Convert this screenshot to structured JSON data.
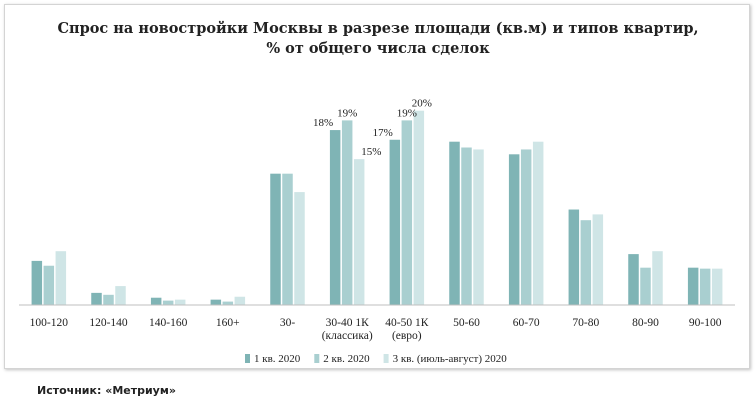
{
  "chart_data": {
    "type": "bar",
    "title": [
      "Спрос на новостройки  Москвы в разрезе площади (кв.м) и типов квартир,",
      "% от общего числа сделок"
    ],
    "categories": [
      [
        "100-120"
      ],
      [
        "120-140"
      ],
      [
        "140-160"
      ],
      [
        "160+"
      ],
      [
        "30-"
      ],
      [
        "30-40  1К",
        "(классика)"
      ],
      [
        "40-50  1К",
        "(евро)"
      ],
      [
        "50-60"
      ],
      [
        "60-70"
      ],
      [
        "70-80"
      ],
      [
        "80-90"
      ],
      [
        "90-100"
      ]
    ],
    "series": [
      {
        "name": "1 кв. 2020",
        "color": "#7fb4b5",
        "values": [
          4.5,
          1.2,
          0.7,
          0.5,
          13.5,
          18,
          17,
          16.8,
          15.5,
          9.8,
          5.2,
          3.8
        ]
      },
      {
        "name": "2 кв. 2020",
        "color": "#a9cfd0",
        "values": [
          4.0,
          1.0,
          0.4,
          0.3,
          13.5,
          19,
          19,
          16.2,
          16.0,
          8.7,
          3.8,
          3.7
        ]
      },
      {
        "name": "3 кв. (июль-август) 2020",
        "color": "#cfe5e6",
        "values": [
          5.5,
          1.9,
          0.5,
          0.8,
          11.6,
          15,
          20,
          16.0,
          16.8,
          9.3,
          5.5,
          3.7
        ]
      }
    ],
    "data_labels": [
      {
        "category": 5,
        "series": 0,
        "text": "18%"
      },
      {
        "category": 5,
        "series": 1,
        "text": "19%"
      },
      {
        "category": 5,
        "series": 2,
        "text": "15%"
      },
      {
        "category": 6,
        "series": 0,
        "text": "17%"
      },
      {
        "category": 6,
        "series": 1,
        "text": "19%"
      },
      {
        "category": 6,
        "series": 2,
        "text": "20%"
      }
    ],
    "ylim": [
      0,
      21
    ],
    "grid": false,
    "legend": "bottom"
  },
  "source": "Источник: «Метриум»"
}
